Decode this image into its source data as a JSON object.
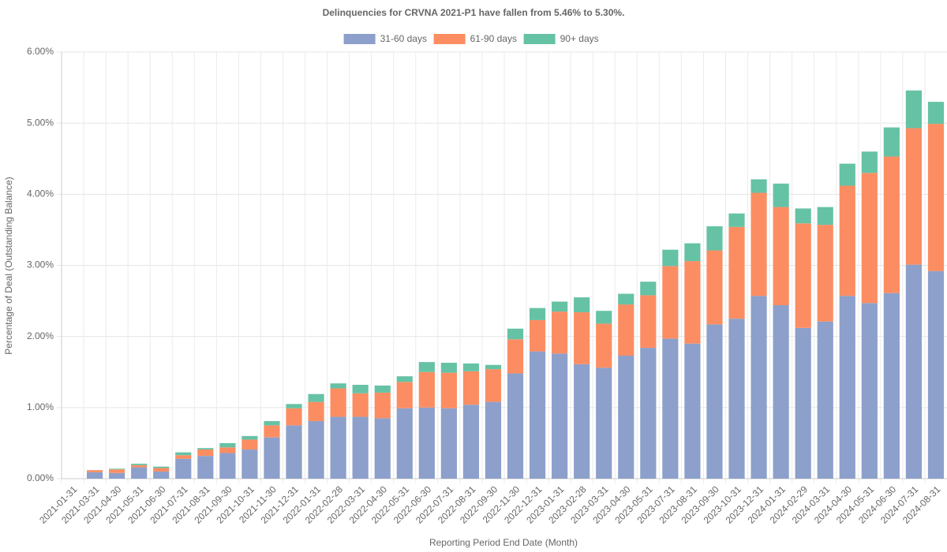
{
  "chart_data": {
    "type": "stacked_bar",
    "title": "Delinquencies for CRVNA 2021-P1 have fallen from 5.46% to 5.30%.",
    "x_label": "Reporting Period End Date (Month)",
    "y_label": "Percentage of Deal (Outstanding Balance)",
    "categories": [
      "2021-01-31",
      "2021-03-31",
      "2021-04-30",
      "2021-05-31",
      "2021-06-30",
      "2021-07-31",
      "2021-08-31",
      "2021-09-30",
      "2021-10-31",
      "2021-11-30",
      "2021-12-31",
      "2022-01-31",
      "2022-02-28",
      "2022-03-31",
      "2022-04-30",
      "2022-05-31",
      "2022-06-30",
      "2022-07-31",
      "2022-08-31",
      "2022-09-30",
      "2022-11-30",
      "2022-12-31",
      "2023-01-31",
      "2023-02-28",
      "2023-03-31",
      "2023-04-30",
      "2023-05-31",
      "2023-07-31",
      "2023-08-31",
      "2023-09-30",
      "2023-10-31",
      "2023-12-31",
      "2024-01-31",
      "2024-02-29",
      "2024-03-31",
      "2024-04-30",
      "2024-05-31",
      "2024-06-30",
      "2024-07-31",
      "2024-08-31"
    ],
    "series": [
      {
        "name": "31-60 days",
        "color": "#8da0cb",
        "values": [
          0,
          0.09,
          0.08,
          0.16,
          0.1,
          0.28,
          0.32,
          0.36,
          0.41,
          0.58,
          0.75,
          0.81,
          0.87,
          0.87,
          0.85,
          0.99,
          1.0,
          0.99,
          1.04,
          1.08,
          1.48,
          1.79,
          1.76,
          1.61,
          1.56,
          1.73,
          1.84,
          1.97,
          1.9,
          2.17,
          2.25,
          2.57,
          2.44,
          2.12,
          2.21,
          2.57,
          2.47,
          2.61,
          3.01,
          2.92
        ]
      },
      {
        "name": "61-90 days",
        "color": "#fc8d62",
        "values": [
          0,
          0.03,
          0.05,
          0.03,
          0.05,
          0.05,
          0.09,
          0.08,
          0.14,
          0.17,
          0.24,
          0.27,
          0.4,
          0.33,
          0.36,
          0.37,
          0.5,
          0.5,
          0.47,
          0.46,
          0.48,
          0.44,
          0.59,
          0.73,
          0.62,
          0.72,
          0.74,
          1.02,
          1.16,
          1.04,
          1.29,
          1.45,
          1.38,
          1.47,
          1.36,
          1.55,
          1.83,
          1.92,
          1.92,
          2.07
        ]
      },
      {
        "name": "90+ days",
        "color": "#66c2a5",
        "values": [
          0,
          0.0,
          0.01,
          0.02,
          0.02,
          0.04,
          0.02,
          0.06,
          0.05,
          0.06,
          0.06,
          0.11,
          0.07,
          0.12,
          0.1,
          0.08,
          0.14,
          0.14,
          0.11,
          0.06,
          0.15,
          0.17,
          0.14,
          0.21,
          0.18,
          0.15,
          0.19,
          0.23,
          0.25,
          0.34,
          0.19,
          0.19,
          0.33,
          0.21,
          0.25,
          0.31,
          0.3,
          0.41,
          0.53,
          0.31
        ]
      }
    ],
    "ylim": [
      0,
      6
    ],
    "yticks": [
      {
        "value": 0,
        "label": "0.00%"
      },
      {
        "value": 1,
        "label": "1.00%"
      },
      {
        "value": 2,
        "label": "2.00%"
      },
      {
        "value": 3,
        "label": "3.00%"
      },
      {
        "value": 4,
        "label": "4.00%"
      },
      {
        "value": 5,
        "label": "5.00%"
      },
      {
        "value": 6,
        "label": "6.00%"
      }
    ],
    "grid": true,
    "legend": "top"
  }
}
